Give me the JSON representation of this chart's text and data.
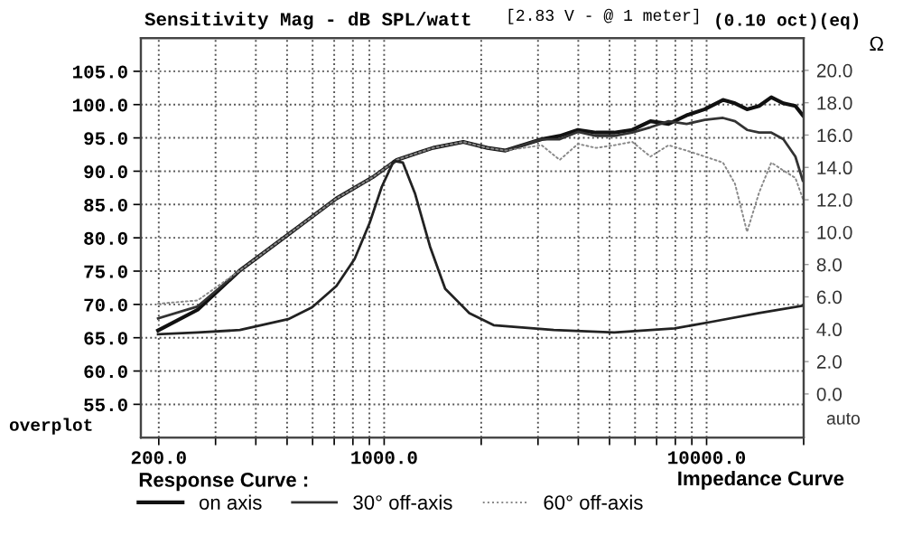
{
  "chart_data": {
    "type": "line",
    "title": "Sensitivity Mag - dB SPL/watt",
    "subtitle": "[2.83 V - @ 1 meter]",
    "y2label": "Ω",
    "legend_title": "Response Curve :",
    "legend": "bottom",
    "log": "x",
    "grid": true,
    "annotations": [
      "(0.10 oct)(eq)",
      "overplot",
      "auto",
      "Impedance Curve"
    ],
    "x": [
      199,
      264,
      357,
      504,
      711,
      922,
      1094,
      1300,
      1418,
      1759,
      2090,
      2378,
      3080,
      3505,
      3990,
      4540,
      5170,
      5880,
      6700,
      7620,
      8670,
      9870,
      11240,
      12250,
      13350,
      14550,
      15870,
      17300,
      18850,
      19870
    ],
    "series": [
      {
        "name": "on axis",
        "color": "#111111",
        "line_style": "solid",
        "values": [
          66.1,
          69.2,
          75.1,
          80.5,
          85.9,
          89.1,
          91.7,
          92.9,
          93.5,
          94.4,
          93.5,
          93.1,
          94.8,
          95.3,
          96.2,
          95.8,
          95.8,
          96.2,
          97.5,
          97.1,
          98.4,
          99.3,
          100.7,
          100.2,
          99.3,
          99.8,
          101.1,
          100.2,
          99.8,
          98.4
        ]
      },
      {
        "name": "30° off-axis",
        "color": "#333333",
        "line_style": "solid",
        "values": [
          67.9,
          69.7,
          75.1,
          80.5,
          85.9,
          89.1,
          91.7,
          92.9,
          93.5,
          94.4,
          93.5,
          93.1,
          94.8,
          94.8,
          95.9,
          95.3,
          95.3,
          95.8,
          96.6,
          97.5,
          97.1,
          97.7,
          98.0,
          97.5,
          96.2,
          95.8,
          95.8,
          94.8,
          92.2,
          88.6
        ]
      },
      {
        "name": "60° off-axis",
        "color": "#888888",
        "line_style": "dotted",
        "values": [
          70.1,
          70.6,
          75.1,
          80.5,
          85.9,
          89.1,
          91.7,
          92.9,
          93.5,
          94.4,
          93.5,
          93.1,
          93.9,
          91.7,
          94.1,
          93.5,
          93.9,
          94.4,
          92.2,
          93.9,
          93.1,
          92.2,
          91.3,
          88.1,
          80.9,
          86.8,
          91.3,
          90.1,
          89.0,
          85.9
        ]
      },
      {
        "axis": "y2",
        "color": "#222222",
        "line_style": "solid",
        "x": [
          199,
          264,
          357,
          504,
          598,
          711,
          810,
          902,
          983,
          1071,
          1143,
          1246,
          1388,
          1546,
          1837,
          2185,
          3357,
          5170,
          7960,
          10310,
          14550,
          19870
        ],
        "values": [
          3.69,
          3.8,
          3.95,
          4.62,
          5.36,
          6.67,
          8.35,
          10.58,
          12.8,
          14.4,
          14.3,
          12.4,
          9.1,
          6.5,
          5.0,
          4.25,
          3.95,
          3.8,
          4.05,
          4.45,
          5.0,
          5.45
        ]
      }
    ],
    "xlim": [
      176,
      20000
    ],
    "xticks": [
      {
        "value": 200,
        "label": "200.0"
      },
      {
        "value": 300,
        "label": null
      },
      {
        "value": 400,
        "label": null
      },
      {
        "value": 500,
        "label": null
      },
      {
        "value": 600,
        "label": null
      },
      {
        "value": 700,
        "label": null
      },
      {
        "value": 800,
        "label": null
      },
      {
        "value": 900,
        "label": null
      },
      {
        "value": 1000,
        "label": "1000.0"
      },
      {
        "value": 2000,
        "label": null
      },
      {
        "value": 3000,
        "label": null
      },
      {
        "value": 4000,
        "label": null
      },
      {
        "value": 5000,
        "label": null
      },
      {
        "value": 6000,
        "label": null
      },
      {
        "value": 7000,
        "label": null
      },
      {
        "value": 8000,
        "label": null
      },
      {
        "value": 9000,
        "label": null
      },
      {
        "value": 10000,
        "label": "10000.0"
      },
      {
        "value": 20000,
        "label": null
      }
    ],
    "ylim": [
      50,
      110
    ],
    "yticks": [
      {
        "value": 55,
        "label": "55.0"
      },
      {
        "value": 60,
        "label": "60.0"
      },
      {
        "value": 65,
        "label": "65.0"
      },
      {
        "value": 70,
        "label": "70.0"
      },
      {
        "value": 75,
        "label": "75.0"
      },
      {
        "value": 80,
        "label": "80.0"
      },
      {
        "value": 85,
        "label": "85.0"
      },
      {
        "value": 90,
        "label": "90.0"
      },
      {
        "value": 95,
        "label": "95.0"
      },
      {
        "value": 100,
        "label": "100.0"
      },
      {
        "value": 105,
        "label": "105.0"
      }
    ],
    "y2lim": [
      -2.7,
      22.0
    ],
    "y2ticks": [
      {
        "value": 0,
        "label": "0.0"
      },
      {
        "value": 2,
        "label": "2.0"
      },
      {
        "value": 4,
        "label": "4.0"
      },
      {
        "value": 6,
        "label": "6.0"
      },
      {
        "value": 8,
        "label": "8.0"
      },
      {
        "value": 10,
        "label": "10.0"
      },
      {
        "value": 12,
        "label": "12.0"
      },
      {
        "value": 14,
        "label": "14.0"
      },
      {
        "value": 16,
        "label": "16.0"
      },
      {
        "value": 18,
        "label": "18.0"
      },
      {
        "value": 20,
        "label": "20.0"
      }
    ]
  }
}
